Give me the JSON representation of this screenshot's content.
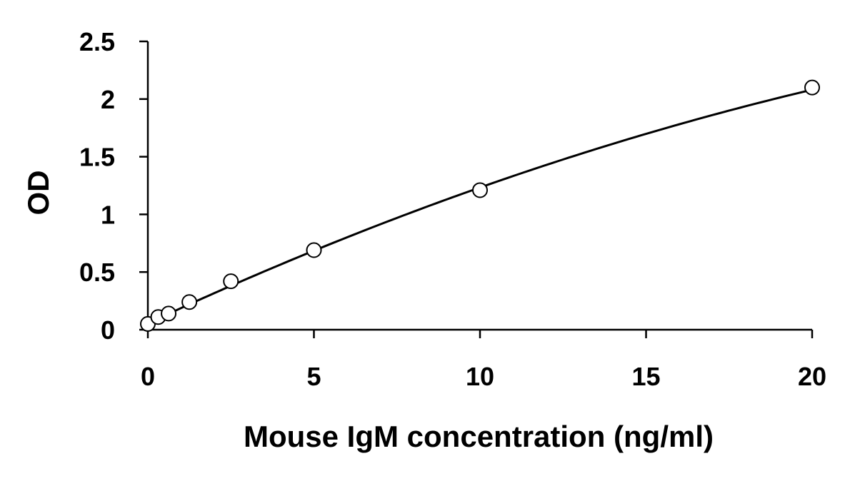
{
  "chart_data": {
    "type": "scatter",
    "xlabel": "Mouse IgM concentration (ng/ml)",
    "ylabel": "OD",
    "xlim": [
      0,
      20
    ],
    "ylim": [
      0,
      2.5
    ],
    "x_ticks": [
      0,
      5,
      10,
      15,
      20
    ],
    "y_ticks": [
      0,
      0.5,
      1,
      1.5,
      2,
      2.5
    ],
    "x_tick_labels": [
      "0",
      "5",
      "10",
      "15",
      "20"
    ],
    "y_tick_labels": [
      "0",
      "0.5",
      "1",
      "1.5",
      "2",
      "2.5"
    ],
    "grid": false,
    "legend": "none",
    "series": [
      {
        "marker": "open-circle",
        "points": [
          {
            "x": 0,
            "y": 0.05
          },
          {
            "x": 0.3125,
            "y": 0.11
          },
          {
            "x": 0.625,
            "y": 0.14
          },
          {
            "x": 1.25,
            "y": 0.24
          },
          {
            "x": 2.5,
            "y": 0.42
          },
          {
            "x": 5,
            "y": 0.69
          },
          {
            "x": 10,
            "y": 1.21
          },
          {
            "x": 20,
            "y": 2.1
          }
        ]
      }
    ],
    "trendline": {
      "type": "polynomial",
      "coefficients": [
        0.055,
        0.1343,
        -0.00165
      ]
    }
  }
}
